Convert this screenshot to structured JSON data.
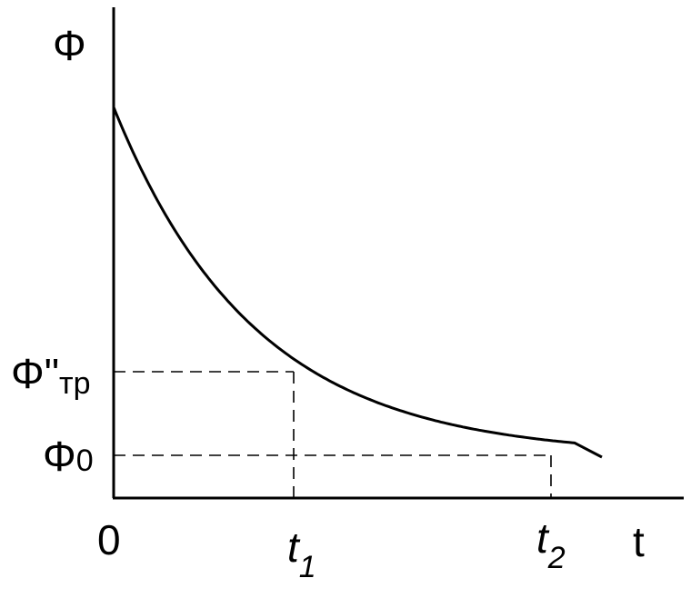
{
  "chart_data": {
    "type": "line",
    "y_axis_label": "Φ",
    "x_axis_label": "t",
    "origin_label": "0",
    "y_ticks": [
      {
        "main": "Φ",
        "marks": "\"",
        "sub": "тр"
      },
      {
        "main": "Φ",
        "sub": "0"
      }
    ],
    "x_ticks": [
      {
        "main": "t",
        "sub": "1"
      },
      {
        "main": "t",
        "sub": "2"
      }
    ],
    "curve": "decaying exponential from a high initial value toward Φ0",
    "guide_lines": "dashed",
    "grid": false
  }
}
